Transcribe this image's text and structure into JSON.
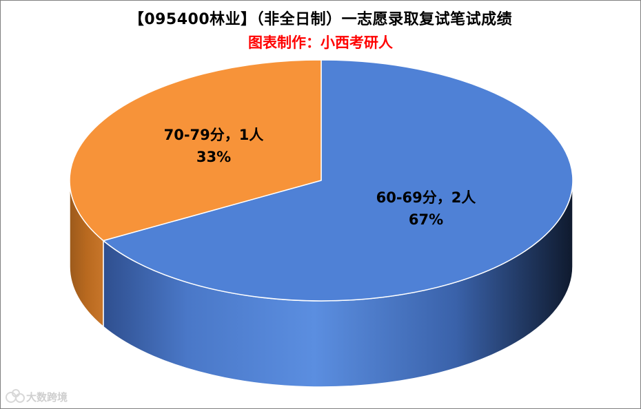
{
  "title": "【095400林业】（非全日制）一志愿录取复试笔试成绩",
  "subtitle": "图表制作：小西考研人",
  "watermark": {
    "text": "大数跨境",
    "icon": "logo-icon"
  },
  "colors": {
    "subtitle": "#ff0000",
    "border": "#7f7f7f"
  },
  "chart_data": {
    "type": "pie",
    "style": "3d",
    "title": "【095400林业】（非全日制）一志愿录取复试笔试成绩",
    "subtitle": "图表制作：小西考研人",
    "slices": [
      {
        "label": "60-69分，2人",
        "value": 2,
        "percent": "67%",
        "color": "#4f81d6"
      },
      {
        "label": "70-79分，1人",
        "value": 1,
        "percent": "33%",
        "color": "#f79339"
      }
    ]
  }
}
